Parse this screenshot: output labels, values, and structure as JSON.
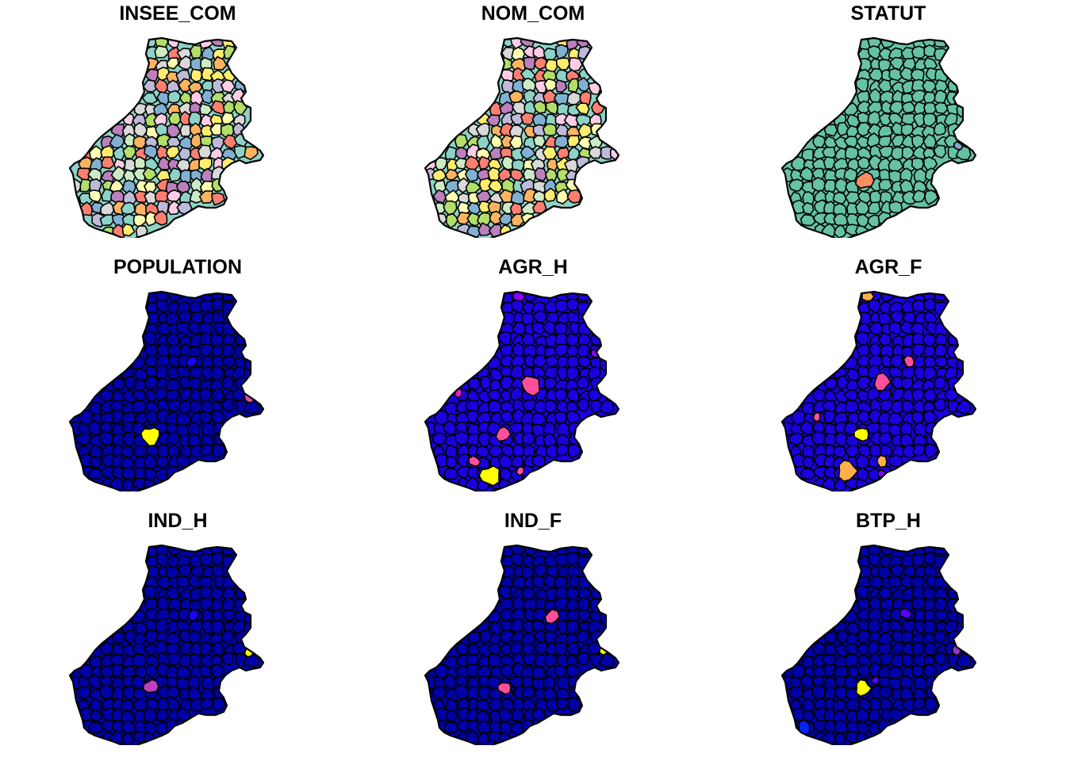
{
  "figure": {
    "panels": [
      {
        "title": "INSEE_COM",
        "scheme": "categorical",
        "base": null,
        "highlights": []
      },
      {
        "title": "NOM_COM",
        "scheme": "categorical",
        "base": null,
        "highlights": []
      },
      {
        "title": "STATUT",
        "scheme": "single",
        "base": "#66c2a5",
        "highlights": []
      },
      {
        "title": "POPULATION",
        "scheme": "single",
        "base": "#0000aa",
        "highlights": []
      },
      {
        "title": "AGR_H",
        "scheme": "single",
        "base": "#1a00e0",
        "highlights": []
      },
      {
        "title": "AGR_F",
        "scheme": "single",
        "base": "#1a00e0",
        "highlights": []
      },
      {
        "title": "IND_H",
        "scheme": "single",
        "base": "#0000aa",
        "highlights": []
      },
      {
        "title": "IND_F",
        "scheme": "single",
        "base": "#0000aa",
        "highlights": []
      },
      {
        "title": "BTP_H",
        "scheme": "single",
        "base": "#0000aa",
        "highlights": []
      }
    ],
    "colors": {
      "categorical": [
        "#8dd3c7",
        "#ffffb3",
        "#bebada",
        "#fb8072",
        "#80b1d3",
        "#fdb462",
        "#b3de69",
        "#fccde5",
        "#d9d9d9",
        "#bc80bd",
        "#ccebc5",
        "#ffed6f"
      ],
      "outline": "#000000"
    }
  }
}
